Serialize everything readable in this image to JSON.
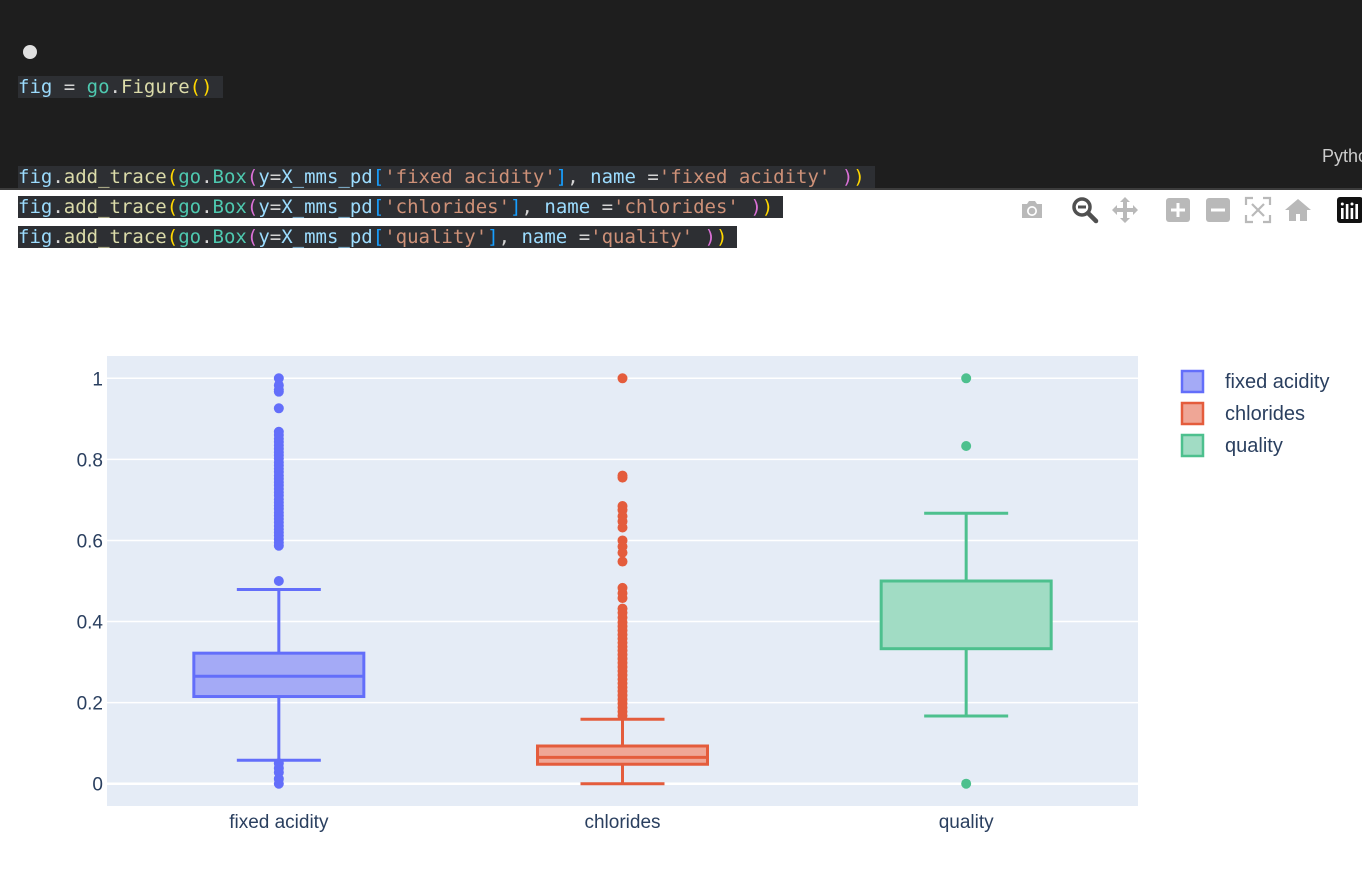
{
  "code": {
    "line1": {
      "var": "fig",
      "eq": " = ",
      "mod": "go",
      "fn": "Figure"
    },
    "lines": [
      {
        "obj": "fig",
        "method": "add_trace",
        "mod": "go",
        "cls": "Box",
        "arg_y": "y",
        "src": "X_mms_pd",
        "col": "'fixed acidity'",
        "kw": "name",
        "name": "'fixed acidity'"
      },
      {
        "obj": "fig",
        "method": "add_trace",
        "mod": "go",
        "cls": "Box",
        "arg_y": "y",
        "src": "X_mms_pd",
        "col": "'chlorides'",
        "kw": "name",
        "name": "'chlorides'"
      },
      {
        "obj": "fig",
        "method": "add_trace",
        "mod": "go",
        "cls": "Box",
        "arg_y": "y",
        "src": "X_mms_pd",
        "col": "'quality'",
        "kw": "name",
        "name": "'quality'"
      }
    ],
    "language": "Pytho"
  },
  "modebar": {
    "icons": [
      "camera-icon",
      "zoom-icon",
      "pan-icon",
      "zoom-in-icon",
      "zoom-out-icon",
      "autoscale-icon",
      "reset-axes-icon",
      "plotly-logo-icon"
    ],
    "active": "zoom-icon"
  },
  "chart_data": {
    "type": "box",
    "categories": [
      "fixed acidity",
      "chlorides",
      "quality"
    ],
    "ylim": [
      -0.055,
      1.055
    ],
    "yticks": [
      0,
      0.2,
      0.4,
      0.6,
      0.8,
      1
    ],
    "ytick_labels": [
      "0",
      "0.2",
      "0.4",
      "0.6",
      "0.8",
      "1"
    ],
    "grid": true,
    "legend_position": "top-right",
    "series": [
      {
        "name": "fixed acidity",
        "color": "#636efa",
        "fill": "#a4aaf6",
        "q1": 0.215,
        "median": 0.265,
        "q3": 0.322,
        "lowerfence": 0.058,
        "upperfence": 0.479,
        "outliers": [
          1.0,
          0.983,
          0.972,
          0.967,
          0.926,
          0.868,
          0.86,
          0.851,
          0.843,
          0.835,
          0.826,
          0.818,
          0.81,
          0.802,
          0.793,
          0.785,
          0.777,
          0.769,
          0.76,
          0.752,
          0.744,
          0.736,
          0.727,
          0.719,
          0.711,
          0.702,
          0.694,
          0.686,
          0.678,
          0.669,
          0.661,
          0.653,
          0.645,
          0.636,
          0.628,
          0.62,
          0.612,
          0.603,
          0.595,
          0.587,
          0.5,
          0.05,
          0.038,
          0.028,
          0.012,
          0.0
        ]
      },
      {
        "name": "chlorides",
        "color": "#e45c3c",
        "fill": "#efa696",
        "q1": 0.048,
        "median": 0.065,
        "q3": 0.093,
        "lowerfence": 0.0,
        "upperfence": 0.159,
        "outliers": [
          1.0,
          0.76,
          0.755,
          0.685,
          0.675,
          0.66,
          0.647,
          0.632,
          0.6,
          0.585,
          0.57,
          0.548,
          0.483,
          0.47,
          0.458,
          0.432,
          0.422,
          0.41,
          0.398,
          0.388,
          0.378,
          0.368,
          0.358,
          0.348,
          0.338,
          0.328,
          0.318,
          0.308,
          0.298,
          0.288,
          0.278,
          0.268,
          0.258,
          0.248,
          0.238,
          0.228,
          0.218,
          0.208,
          0.198,
          0.188,
          0.178,
          0.168
        ]
      },
      {
        "name": "quality",
        "color": "#4dc08e",
        "fill": "#a1dcc4",
        "q1": 0.333,
        "median": 0.5,
        "q3": 0.5,
        "lowerfence": 0.167,
        "upperfence": 0.667,
        "outliers": [
          1.0,
          0.833,
          0.0
        ]
      }
    ]
  }
}
